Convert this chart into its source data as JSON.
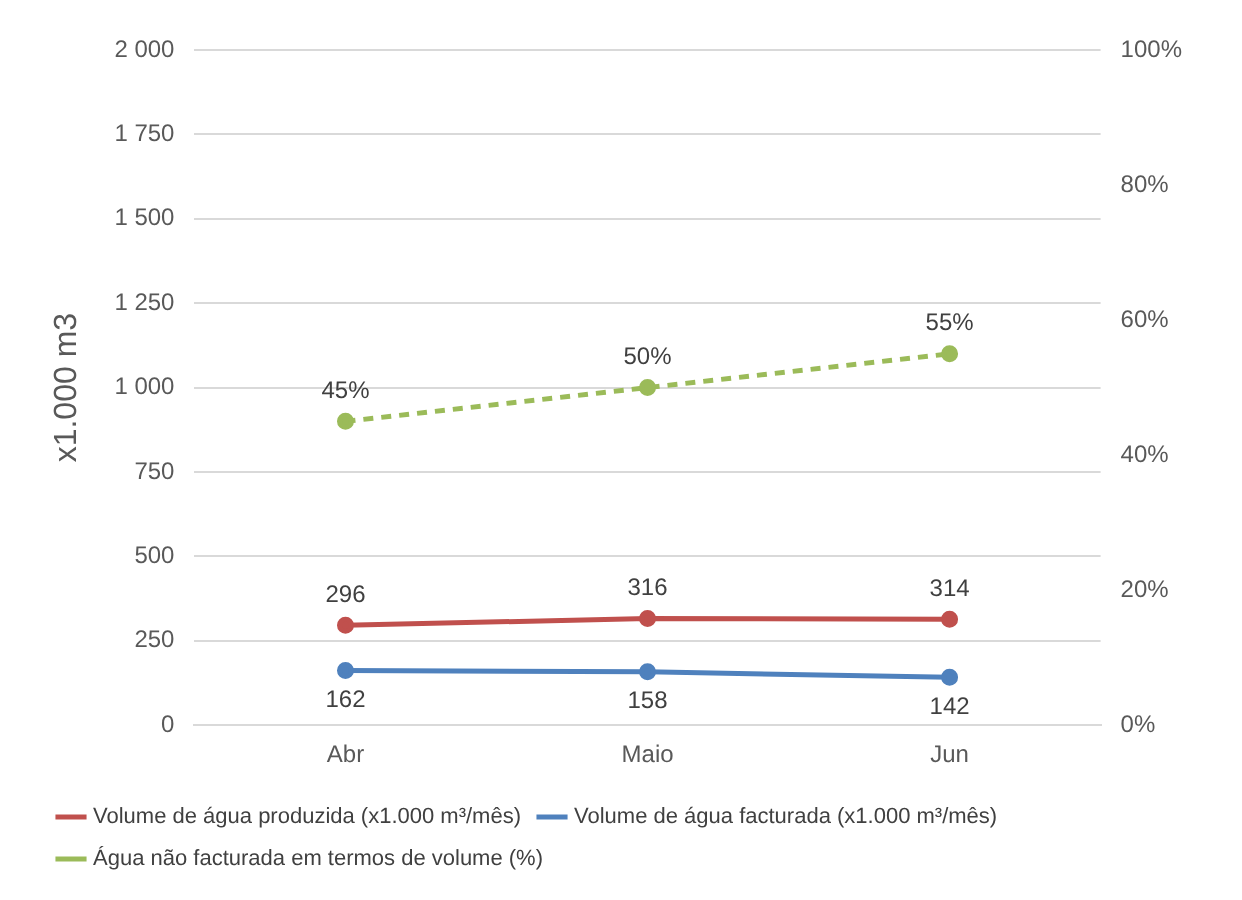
{
  "chart_data": {
    "type": "line",
    "ylabel": "x1.000 m3",
    "categories": [
      "Abr",
      "Maio",
      "Jun"
    ],
    "series": [
      {
        "name": "Volume de água produzida (x1.000 m³/mês)",
        "color": "#c0504d",
        "values": [
          296,
          316,
          314
        ],
        "value_labels": [
          "296",
          "316",
          "314"
        ]
      },
      {
        "name": "Volume de água facturada (x1.000 m³/mês)",
        "color": "#4f81bd",
        "values": [
          162,
          158,
          142
        ],
        "value_labels": [
          "162",
          "158",
          "142"
        ]
      },
      {
        "name": "Água não facturada em termos de volume (%)",
        "color": "#9bbb59",
        "values": [
          45,
          50,
          55
        ],
        "value_labels": [
          "45%",
          "50%",
          "55%"
        ],
        "axis": "y2",
        "line_style": "dashed"
      }
    ],
    "ylim": [
      0,
      2000
    ],
    "yticks": [
      0,
      {
        "value": 250,
        "label": "250"
      },
      {
        "value": 500,
        "label": "500"
      },
      {
        "value": 750,
        "label": "750"
      },
      {
        "value": 1000,
        "label": "1 000"
      },
      {
        "value": 1250,
        "label": "1 250"
      },
      {
        "value": 1500,
        "label": "1 500"
      },
      {
        "value": 1750,
        "label": "1 750"
      },
      {
        "value": 2000,
        "label": "2 000"
      }
    ],
    "y2lim": [
      0,
      100
    ],
    "y2ticks": [
      {
        "value": 0,
        "label": "0%"
      },
      {
        "value": 20,
        "label": "20%"
      },
      {
        "value": 40,
        "label": "40%"
      },
      {
        "value": 60,
        "label": "60%"
      },
      {
        "value": 80,
        "label": "80%"
      },
      {
        "value": 100,
        "label": "100%"
      }
    ],
    "grid": "y",
    "legend": "bottom",
    "marker": "circle",
    "line_style": "solid"
  }
}
